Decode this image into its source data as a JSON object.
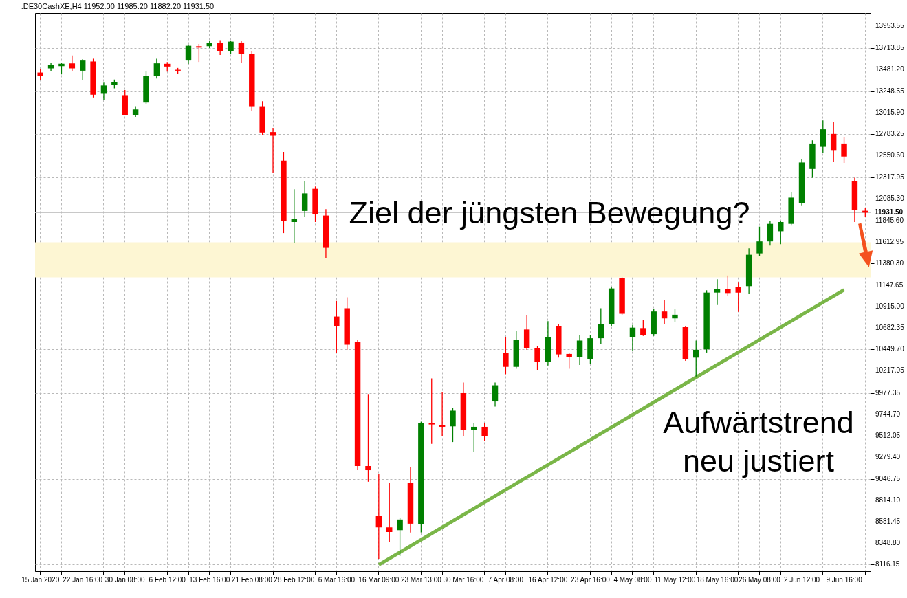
{
  "chart_data": {
    "type": "candlestick",
    "title": ".DE30CashXE,H4  11952.00 11985.20 11882.20 11931.50",
    "categories": [
      "15 Jan 2020",
      null,
      null,
      null,
      "22 Jan 16:00",
      null,
      null,
      null,
      "30 Jan 08:00",
      null,
      null,
      null,
      "6 Feb 12:00",
      null,
      null,
      null,
      "13 Feb 16:00",
      null,
      null,
      null,
      "21 Feb 08:00",
      null,
      null,
      null,
      "28 Feb 12:00",
      null,
      null,
      null,
      "6 Mar 16:00",
      null,
      null,
      null,
      "16 Mar 09:00",
      null,
      null,
      null,
      "23 Mar 13:00",
      null,
      null,
      null,
      "30 Mar 16:00",
      null,
      null,
      null,
      "7 Apr 08:00",
      null,
      null,
      null,
      "16 Apr 12:00",
      null,
      null,
      null,
      "23 Apr 16:00",
      null,
      null,
      null,
      "4 May 08:00",
      null,
      null,
      null,
      "11 May 12:00",
      null,
      null,
      null,
      "18 May 16:00",
      null,
      null,
      null,
      "26 May 08:00",
      null,
      null,
      null,
      "2 Jun 12:00",
      null,
      null,
      null,
      "9 Jun 16:00",
      null,
      null
    ],
    "ohlc": [
      [
        13450,
        13485,
        13365,
        13415
      ],
      [
        13495,
        13555,
        13465,
        13530
      ],
      [
        13520,
        13555,
        13430,
        13545
      ],
      [
        13550,
        13635,
        13470,
        13495
      ],
      [
        13470,
        13595,
        13365,
        13580
      ],
      [
        13570,
        13600,
        13180,
        13210
      ],
      [
        13220,
        13340,
        13155,
        13310
      ],
      [
        13315,
        13375,
        13280,
        13345
      ],
      [
        13205,
        13260,
        12985,
        12990
      ],
      [
        12990,
        13085,
        12970,
        13050
      ],
      [
        13125,
        13470,
        13105,
        13410
      ],
      [
        13410,
        13600,
        13385,
        13550
      ],
      [
        13545,
        13565,
        13460,
        13515
      ],
      [
        13480,
        13500,
        13435,
        13470
      ],
      [
        13580,
        13755,
        13545,
        13740
      ],
      [
        13735,
        13760,
        13565,
        13720
      ],
      [
        13735,
        13790,
        13715,
        13775
      ],
      [
        13770,
        13800,
        13640,
        13685
      ],
      [
        13685,
        13790,
        13650,
        13785
      ],
      [
        13775,
        13790,
        13555,
        13650
      ],
      [
        13650,
        13685,
        13035,
        13085
      ],
      [
        13085,
        13140,
        12770,
        12800
      ],
      [
        12805,
        12850,
        12360,
        12765
      ],
      [
        12495,
        12590,
        11710,
        11845
      ],
      [
        11830,
        12185,
        11605,
        11860
      ],
      [
        11950,
        12270,
        11885,
        12140
      ],
      [
        12190,
        12215,
        11830,
        11915
      ],
      [
        11900,
        11970,
        11435,
        11550
      ],
      [
        10805,
        10975,
        10410,
        10700
      ],
      [
        10895,
        11015,
        10445,
        10500
      ],
      [
        10530,
        10555,
        9140,
        9185
      ],
      [
        9185,
        9965,
        9015,
        9140
      ],
      [
        8645,
        9100,
        8180,
        8520
      ],
      [
        8520,
        9000,
        8365,
        8470
      ],
      [
        8490,
        8620,
        8210,
        8605
      ],
      [
        9000,
        9170,
        8465,
        8560
      ],
      [
        8560,
        9665,
        8465,
        9650
      ],
      [
        9650,
        10135,
        9425,
        9635
      ],
      [
        9625,
        9985,
        9510,
        9610
      ],
      [
        9615,
        9815,
        9445,
        9785
      ],
      [
        9975,
        10090,
        9510,
        9580
      ],
      [
        9580,
        9650,
        9335,
        9610
      ],
      [
        9610,
        9650,
        9455,
        9510
      ],
      [
        9885,
        10090,
        9830,
        10060
      ],
      [
        10410,
        10585,
        10180,
        10260
      ],
      [
        10260,
        10650,
        10240,
        10555
      ],
      [
        10665,
        10820,
        10445,
        10460
      ],
      [
        10465,
        10485,
        10225,
        10310
      ],
      [
        10315,
        10755,
        10275,
        10585
      ],
      [
        10705,
        10720,
        10360,
        10395
      ],
      [
        10400,
        10415,
        10240,
        10365
      ],
      [
        10365,
        10605,
        10280,
        10545
      ],
      [
        10340,
        10605,
        10290,
        10570
      ],
      [
        10570,
        10895,
        10510,
        10720
      ],
      [
        10720,
        11125,
        10700,
        11110
      ],
      [
        11220,
        11230,
        10825,
        10835
      ],
      [
        10580,
        10715,
        10430,
        10685
      ],
      [
        10680,
        10770,
        10595,
        10605
      ],
      [
        10615,
        10890,
        10595,
        10860
      ],
      [
        10860,
        10980,
        10725,
        10785
      ],
      [
        10785,
        10885,
        10750,
        10825
      ],
      [
        10690,
        10705,
        10325,
        10345
      ],
      [
        10360,
        10545,
        10155,
        10445
      ],
      [
        10450,
        11090,
        10415,
        11065
      ],
      [
        11065,
        11210,
        10930,
        11100
      ],
      [
        11100,
        11250,
        11030,
        11060
      ],
      [
        11125,
        11180,
        10855,
        11065
      ],
      [
        11135,
        11545,
        11050,
        11475
      ],
      [
        11490,
        11780,
        11465,
        11620
      ],
      [
        11620,
        11845,
        11575,
        11810
      ],
      [
        11730,
        11845,
        11590,
        11830
      ],
      [
        11810,
        12150,
        11790,
        12095
      ],
      [
        12035,
        12510,
        12010,
        12475
      ],
      [
        12405,
        12715,
        12310,
        12680
      ],
      [
        12645,
        12930,
        12580,
        12835
      ],
      [
        12785,
        12915,
        12480,
        12610
      ],
      [
        12680,
        12750,
        12470,
        12540
      ],
      [
        12275,
        12310,
        11830,
        11958
      ],
      [
        11952,
        11985.2,
        11882.2,
        11931.5
      ]
    ],
    "colors": [
      "#ff0000",
      "#008000",
      "#008000",
      "#ff0000",
      "#008000",
      "#ff0000",
      "#008000",
      "#008000",
      "#ff0000",
      "#008000",
      "#008000",
      "#008000",
      "#ff0000",
      "#ff0000",
      "#008000",
      "#ff0000",
      "#008000",
      "#ff0000",
      "#008000",
      "#ff0000",
      "#ff0000",
      "#ff0000",
      "#ff0000",
      "#ff0000",
      "#008000",
      "#008000",
      "#ff0000",
      "#ff0000",
      "#ff0000",
      "#ff0000",
      "#ff0000",
      "#ff0000",
      "#ff0000",
      "#ff0000",
      "#008000",
      "#ff0000",
      "#008000",
      "#ff0000",
      "#ff0000",
      "#008000",
      "#ff0000",
      "#008000",
      "#ff0000",
      "#008000",
      "#ff0000",
      "#008000",
      "#ff0000",
      "#ff0000",
      "#008000",
      "#ff0000",
      "#ff0000",
      "#008000",
      "#008000",
      "#008000",
      "#008000",
      "#ff0000",
      "#008000",
      "#ff0000",
      "#008000",
      "#ff0000",
      "#008000",
      "#ff0000",
      "#008000",
      "#008000",
      "#008000",
      "#ff0000",
      "#ff0000",
      "#008000",
      "#008000",
      "#008000",
      "#008000",
      "#008000",
      "#008000",
      "#008000",
      "#008000",
      "#ff0000",
      "#ff0000",
      "#ff0000",
      "#ff0000"
    ],
    "series": [
      {
        "type": "line",
        "color": "#7ab648",
        "x": [
          "16 Mar 09:00",
          "9 Jun 16:00"
        ],
        "values": [
          8115,
          11095
        ]
      }
    ],
    "ylim": [
      8045,
      14095
    ],
    "yticks": [
      {
        "value": 13953.55,
        "label": "13953.55"
      },
      {
        "value": 13713.85,
        "label": "13713.85"
      },
      {
        "value": 13481.2,
        "label": "13481.20"
      },
      {
        "value": 13248.55,
        "label": "13248.55"
      },
      {
        "value": 13015.9,
        "label": "13015.90"
      },
      {
        "value": 12783.25,
        "label": "12783.25"
      },
      {
        "value": 12550.6,
        "label": "12550.60"
      },
      {
        "value": 12317.95,
        "label": "12317.95"
      },
      {
        "value": 12085.3,
        "label": "12085.30"
      },
      {
        "value": 11845.6,
        "label": "11845.60"
      },
      {
        "value": 11612.95,
        "label": "11612.95"
      },
      {
        "value": 11380.3,
        "label": "11380.30"
      },
      {
        "value": 11147.65,
        "label": "11147.65"
      },
      {
        "value": 10915,
        "label": "10915.00"
      },
      {
        "value": 10682.35,
        "label": "10682.35"
      },
      {
        "value": 10449.7,
        "label": "10449.70"
      },
      {
        "value": 10217.05,
        "label": "10217.05"
      },
      {
        "value": 9977.35,
        "label": "9977.35"
      },
      {
        "value": 9744.7,
        "label": "9744.70"
      },
      {
        "value": 9512.05,
        "label": "9512.05"
      },
      {
        "value": 9279.4,
        "label": "9279.40"
      },
      {
        "value": 9046.75,
        "label": "9046.75"
      },
      {
        "value": 8814.1,
        "label": "8814.10"
      },
      {
        "value": 8581.45,
        "label": "8581.45"
      },
      {
        "value": 8348.8,
        "label": "8348.80"
      },
      {
        "value": 8116.15,
        "label": "8116.15"
      }
    ],
    "grid": true,
    "ref_lines": [
      {
        "axis": "y",
        "value": 11931.5,
        "label": "11931.50",
        "color": "#c0c0c0"
      }
    ],
    "bands": [
      {
        "axis": "y",
        "from": 11230,
        "to": 11610,
        "color": "#fdf6d3"
      }
    ],
    "annotations": [
      "Ziel der jüngsten Bewegung?",
      "Aufwärtstrend\nneu justiert"
    ]
  }
}
